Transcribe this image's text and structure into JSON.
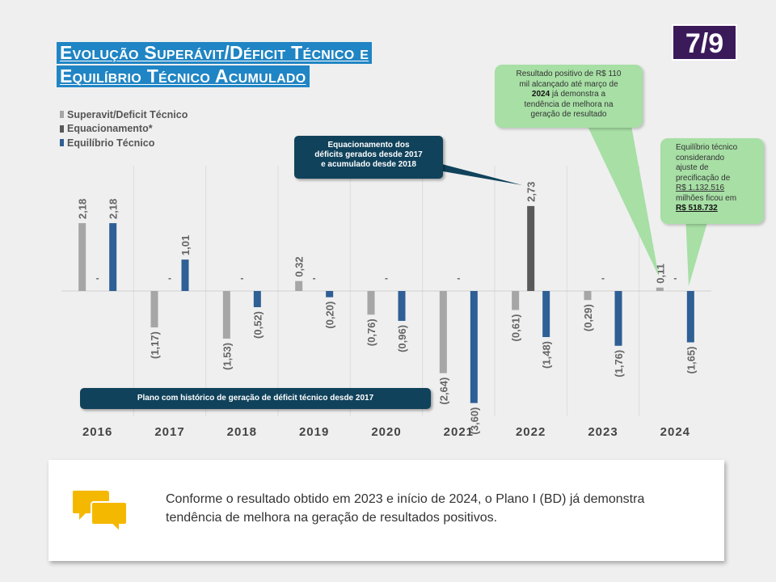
{
  "title": {
    "line1": "Evolução Superávit/Déficit Técnico e",
    "line2": "Equilíbrio Técnico Acumulado"
  },
  "page_badge": "7/9",
  "colors": {
    "superavit": "#a6a6a6",
    "equacionamento": "#595959",
    "equilibrio": "#2e5f95",
    "title_bg": "#2085c4",
    "badge_bg": "#3b1a5a",
    "callout_dark": "#10425b",
    "callout_green": "#a7dfa5"
  },
  "legend": [
    {
      "label": "Superavit/Deficit Técnico",
      "color": "#a6a6a6"
    },
    {
      "label": "Equacionamento*",
      "color": "#595959"
    },
    {
      "label": "Equilíbrio Técnico",
      "color": "#2e5f95"
    }
  ],
  "chart_data": {
    "type": "bar",
    "categories": [
      "2016",
      "2017",
      "2018",
      "2019",
      "2020",
      "2021",
      "2022",
      "2023",
      "2024"
    ],
    "series": [
      {
        "name": "Superavit/Deficit Técnico",
        "values": [
          2.18,
          -1.17,
          -1.53,
          0.32,
          -0.76,
          -2.64,
          -0.61,
          -0.29,
          0.11
        ],
        "labels": [
          "2,18",
          "(1,17)",
          "(1,53)",
          "0,32",
          "(0,76)",
          "(2,64)",
          "(0,61)",
          "(0,29)",
          "0,11"
        ]
      },
      {
        "name": "Equacionamento*",
        "values": [
          0,
          0,
          0,
          0,
          0,
          0,
          2.73,
          0,
          0
        ],
        "labels": [
          "-",
          "-",
          "-",
          "-",
          "-",
          "-",
          "2,73",
          "-",
          "-"
        ]
      },
      {
        "name": "Equilíbrio Técnico",
        "values": [
          2.18,
          1.01,
          -0.52,
          -0.2,
          -0.96,
          -3.6,
          -1.48,
          -1.76,
          -1.65
        ],
        "labels": [
          "2,18",
          "1,01",
          "(0,52)",
          "(0,20)",
          "(0,96)",
          "(3,60)",
          "(1,48)",
          "(1,76)",
          "(1,65)"
        ]
      }
    ],
    "grid": "vertical",
    "legend_position": "top-left"
  },
  "callouts": {
    "equacionamento": {
      "line1": "Equacionamento dos",
      "line2": "déficits gerados desde 2017",
      "line3": "e acumulado desde 2018"
    },
    "historico": "Plano com histórico de geração de déficit técnico desde 2017",
    "resultado": {
      "l1": "Resultado positivo de R$ 110",
      "l2": "mil alcançado até março de",
      "l3_bold": "2024",
      "l3_rest": " já demonstra a",
      "l4": "tendência de melhora na",
      "l5": "geração de resultado"
    },
    "equilibrio": {
      "l1": "Equilíbrio técnico",
      "l2": "considerando",
      "l3": "ajuste de",
      "l4": "precificação de",
      "l5": "R$ 1.132.516",
      "l6": "milhões ficou em",
      "l7": "R$ 518.732"
    }
  },
  "conclusion": "Conforme o resultado obtido em 2023 e início de 2024, o Plano I (BD) já demonstra tendência de melhora na geração de resultados positivos.",
  "icons": {
    "conclusion_icon": "chat-bubbles-icon"
  }
}
